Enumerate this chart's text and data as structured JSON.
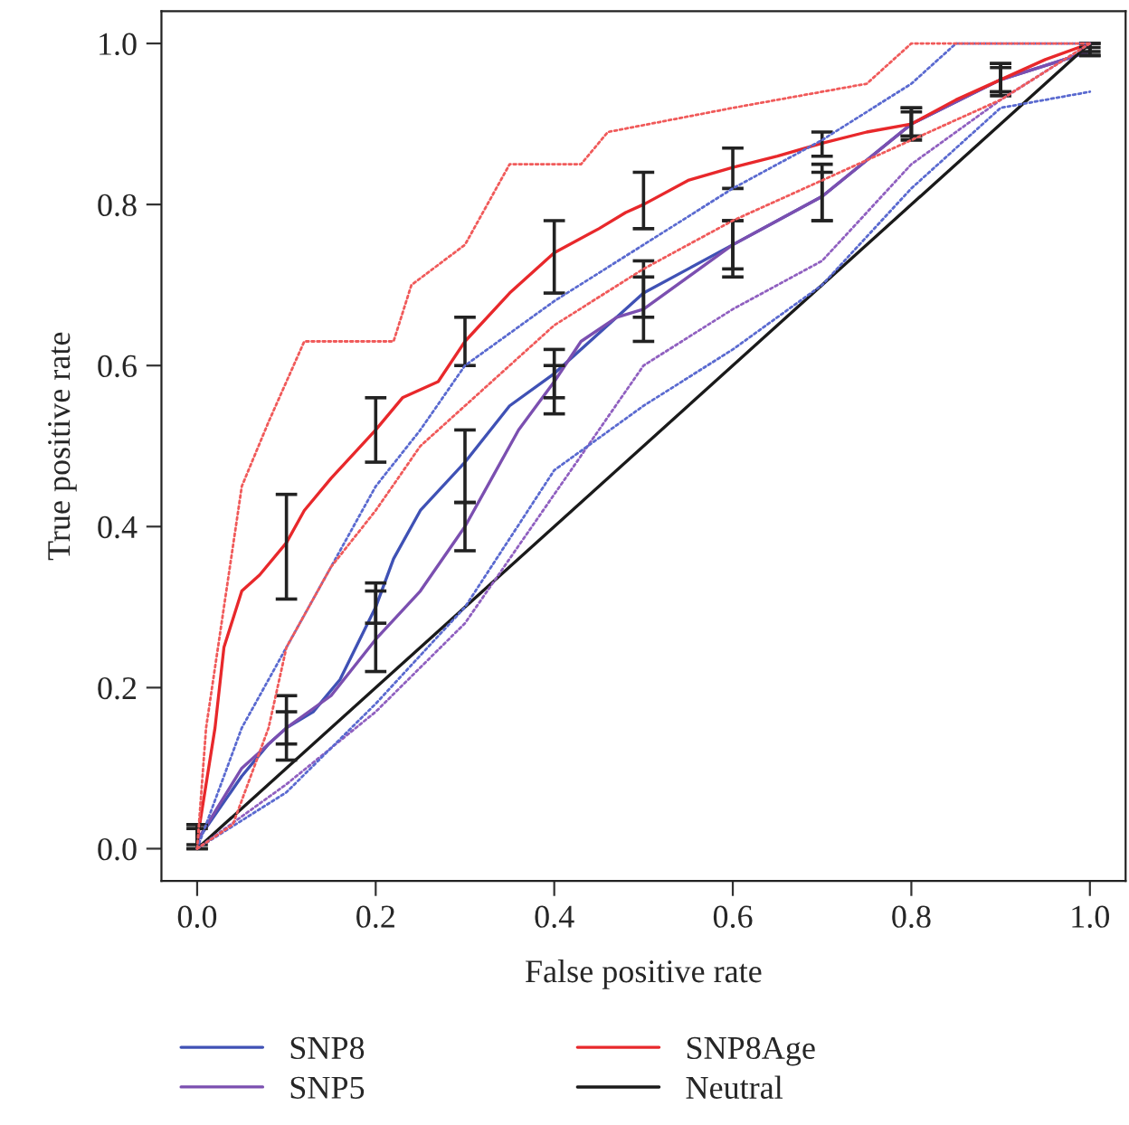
{
  "chart_data": {
    "type": "line",
    "xlabel": "False positive rate",
    "ylabel": "True positive rate",
    "xlim": [
      -0.04,
      1.04
    ],
    "ylim": [
      -0.04,
      1.04
    ],
    "xticks": [
      {
        "value": 0,
        "label": "0.0"
      },
      {
        "value": 0.2,
        "label": "0.2"
      },
      {
        "value": 0.4,
        "label": "0.4"
      },
      {
        "value": 0.6,
        "label": "0.6"
      },
      {
        "value": 0.8,
        "label": "0.8"
      },
      {
        "value": 1,
        "label": "1.0"
      }
    ],
    "yticks": [
      {
        "value": 0,
        "label": "0.0"
      },
      {
        "value": 0.2,
        "label": "0.2"
      },
      {
        "value": 0.4,
        "label": "0.4"
      },
      {
        "value": 0.6,
        "label": "0.6"
      },
      {
        "value": 0.8,
        "label": "0.8"
      },
      {
        "value": 1,
        "label": "1.0"
      }
    ],
    "grid": false,
    "legend": "bottom",
    "line_style": "solid",
    "marker": "none",
    "series": [
      {
        "line_style": "dotted",
        "color": "#f05a5a",
        "x": [
          0,
          0.01,
          0.03,
          0.05,
          0.08,
          0.12,
          0.22,
          0.24,
          0.3,
          0.35,
          0.43,
          0.46,
          0.6,
          0.75,
          0.8,
          1
        ],
        "values": [
          0,
          0.15,
          0.3,
          0.45,
          0.53,
          0.63,
          0.63,
          0.7,
          0.75,
          0.85,
          0.85,
          0.89,
          0.92,
          0.95,
          1.0,
          1.0
        ]
      },
      {
        "line_style": "dotted",
        "color": "#f05a5a",
        "x": [
          0,
          0.04,
          0.08,
          0.1,
          0.15,
          0.2,
          0.25,
          0.3,
          0.35,
          0.4,
          0.5,
          0.6,
          0.7,
          0.8,
          0.9,
          1
        ],
        "values": [
          0,
          0.03,
          0.15,
          0.25,
          0.35,
          0.42,
          0.5,
          0.55,
          0.6,
          0.65,
          0.72,
          0.78,
          0.83,
          0.88,
          0.93,
          1.0
        ]
      },
      {
        "line_style": "dotted",
        "color": "#5a6ad0",
        "x": [
          0,
          0.05,
          0.1,
          0.15,
          0.2,
          0.25,
          0.3,
          0.4,
          0.5,
          0.6,
          0.7,
          0.8,
          0.85,
          1
        ],
        "values": [
          0,
          0.15,
          0.25,
          0.35,
          0.45,
          0.52,
          0.6,
          0.68,
          0.75,
          0.82,
          0.88,
          0.95,
          1.0,
          1.0
        ]
      },
      {
        "line_style": "dotted",
        "color": "#5a6ad0",
        "x": [
          0,
          0.1,
          0.2,
          0.3,
          0.4,
          0.5,
          0.6,
          0.7,
          0.8,
          0.9,
          1
        ],
        "values": [
          0,
          0.07,
          0.18,
          0.3,
          0.47,
          0.55,
          0.62,
          0.7,
          0.82,
          0.92,
          0.94
        ]
      },
      {
        "line_style": "dotted",
        "color": "#9060c0",
        "x": [
          0,
          0.1,
          0.2,
          0.3,
          0.4,
          0.5,
          0.6,
          0.7,
          0.8,
          0.9,
          1
        ],
        "values": [
          0,
          0.08,
          0.17,
          0.28,
          0.44,
          0.6,
          0.67,
          0.73,
          0.85,
          0.93,
          1.0
        ]
      },
      {
        "name": "SNP8",
        "color": "#3f51b5",
        "x": [
          0,
          0.05,
          0.08,
          0.1,
          0.13,
          0.16,
          0.2,
          0.22,
          0.25,
          0.3,
          0.35,
          0.4,
          0.45,
          0.5,
          0.55,
          0.6,
          0.7,
          0.8,
          0.9,
          1
        ],
        "values": [
          0.01,
          0.09,
          0.13,
          0.15,
          0.17,
          0.21,
          0.3,
          0.36,
          0.42,
          0.48,
          0.55,
          0.59,
          0.64,
          0.69,
          0.72,
          0.75,
          0.81,
          0.9,
          0.955,
          0.99
        ],
        "errors": [
          [
            0.0,
            0.03
          ],
          null,
          null,
          [
            0.11,
            0.19
          ],
          null,
          null,
          [
            0.28,
            0.33
          ],
          null,
          null,
          [
            0.43,
            0.52
          ],
          null,
          [
            0.56,
            0.62
          ],
          null,
          [
            0.66,
            0.73
          ],
          null,
          [
            0.72,
            0.78
          ],
          [
            0.78,
            0.84
          ],
          [
            0.88,
            0.92
          ],
          [
            0.935,
            0.975
          ],
          [
            0.985,
            1.0
          ]
        ]
      },
      {
        "name": "SNP5",
        "color": "#7b4fb0",
        "x": [
          0,
          0.05,
          0.1,
          0.15,
          0.2,
          0.25,
          0.3,
          0.33,
          0.36,
          0.4,
          0.43,
          0.47,
          0.5,
          0.6,
          0.7,
          0.8,
          0.9,
          1
        ],
        "values": [
          0.01,
          0.1,
          0.15,
          0.19,
          0.26,
          0.32,
          0.4,
          0.46,
          0.52,
          0.58,
          0.63,
          0.66,
          0.67,
          0.75,
          0.81,
          0.9,
          0.955,
          0.99
        ],
        "errors": [
          [
            0.0,
            0.025
          ],
          null,
          [
            0.13,
            0.17
          ],
          null,
          [
            0.22,
            0.32
          ],
          null,
          [
            0.37,
            0.43
          ],
          null,
          null,
          [
            0.54,
            0.6
          ],
          null,
          null,
          [
            0.63,
            0.71
          ],
          [
            0.71,
            0.78
          ],
          [
            0.78,
            0.85
          ],
          [
            0.885,
            0.92
          ],
          [
            0.94,
            0.975
          ],
          [
            0.985,
            0.995
          ]
        ]
      },
      {
        "name": "SNP8Age",
        "color": "#e8282b",
        "x": [
          0,
          0.02,
          0.03,
          0.05,
          0.07,
          0.1,
          0.12,
          0.15,
          0.2,
          0.23,
          0.27,
          0.3,
          0.35,
          0.4,
          0.45,
          0.48,
          0.5,
          0.55,
          0.6,
          0.65,
          0.7,
          0.75,
          0.8,
          0.85,
          0.9,
          0.95,
          1
        ],
        "values": [
          0.01,
          0.15,
          0.25,
          0.32,
          0.34,
          0.38,
          0.42,
          0.46,
          0.52,
          0.56,
          0.58,
          0.63,
          0.69,
          0.74,
          0.77,
          0.79,
          0.8,
          0.83,
          0.846,
          0.86,
          0.876,
          0.89,
          0.9,
          0.93,
          0.955,
          0.98,
          1.0
        ],
        "errors": [
          [
            0.005,
            0.03
          ],
          null,
          null,
          null,
          null,
          [
            0.31,
            0.44
          ],
          null,
          null,
          [
            0.48,
            0.56
          ],
          null,
          null,
          [
            0.6,
            0.66
          ],
          null,
          [
            0.69,
            0.78
          ],
          null,
          null,
          [
            0.77,
            0.84
          ],
          null,
          [
            0.82,
            0.87
          ],
          null,
          [
            0.86,
            0.89
          ],
          null,
          [
            0.885,
            0.915
          ],
          null,
          [
            0.94,
            0.97
          ],
          null,
          [
            0.99,
            1.0
          ]
        ]
      },
      {
        "name": "Neutral",
        "color": "#1a1a1a",
        "x": [
          0,
          1
        ],
        "values": [
          0,
          1
        ]
      }
    ]
  }
}
